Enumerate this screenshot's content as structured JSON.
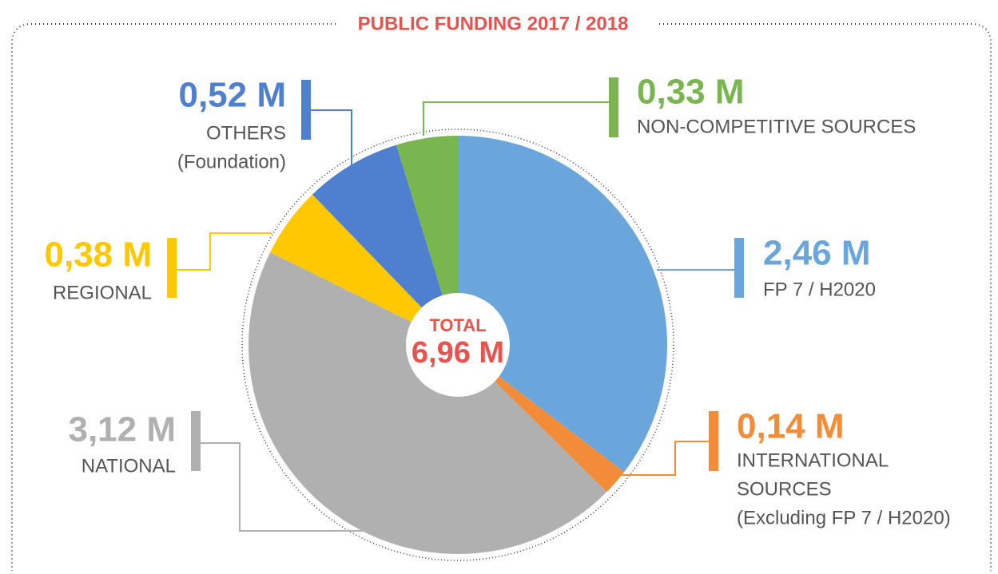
{
  "chart_data": {
    "type": "pie",
    "title": "PUBLIC FUNDING 2017 / 2018",
    "categories": [
      [
        "FP 7 / H2020"
      ],
      [
        "INTERNATIONAL",
        "SOURCES",
        "(Excluding FP 7 / H2020)"
      ],
      [
        "NATIONAL"
      ],
      [
        "REGIONAL"
      ],
      [
        "OTHERS",
        "(Foundation)"
      ],
      [
        "NON-COMPETITIVE SOURCES"
      ]
    ],
    "values": [
      2.46,
      0.14,
      3.12,
      0.38,
      0.52,
      0.33
    ],
    "value_labels": [
      "2,46 M",
      "0,14 M",
      "3,12 M",
      "0,38 M",
      "0,52 M",
      "0,33 M"
    ],
    "colors": [
      "#6aa6dc",
      "#f28c38",
      "#b0b0b0",
      "#ffc800",
      "#4f7fcf",
      "#7ab650"
    ],
    "total_title": "TOTAL",
    "total": {
      "value": 6.96,
      "label": "6,96 M"
    }
  }
}
